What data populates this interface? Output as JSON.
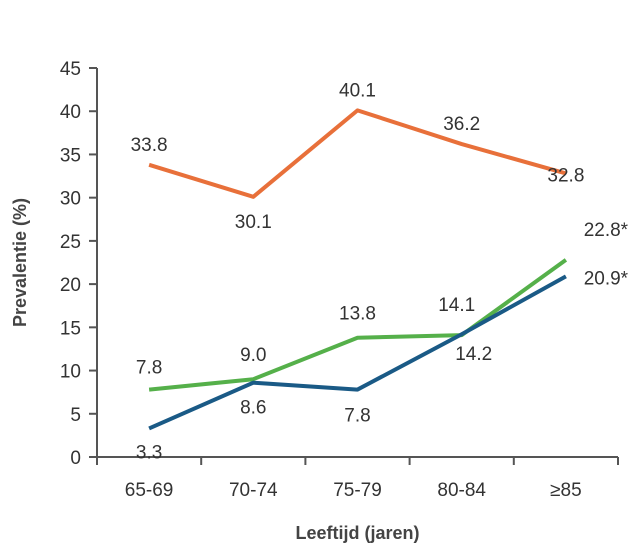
{
  "chart_data": {
    "type": "line",
    "categories": [
      "65-69",
      "70-74",
      "75-79",
      "80-84",
      "≥85"
    ],
    "xlabel": "Leeftijd (jaren)",
    "ylabel": "Prevalentie (%)",
    "ylim": [
      0,
      45
    ],
    "yticks": [
      "0",
      "5",
      "10",
      "15",
      "20",
      "25",
      "30",
      "35",
      "40",
      "45"
    ],
    "grid": false,
    "series": [
      {
        "color": "#e8703a",
        "values": [
          33.8,
          30.1,
          40.1,
          36.2,
          32.8
        ],
        "labels": [
          "33.8",
          "30.1",
          "40.1",
          "36.2",
          "32.8"
        ]
      },
      {
        "color": "#55b04a",
        "values": [
          7.8,
          9.0,
          13.8,
          14.1,
          22.8
        ],
        "labels": [
          "7.8",
          "9.0",
          "13.8",
          "14.1",
          "22.8*"
        ]
      },
      {
        "color": "#1a5a86",
        "values": [
          3.3,
          8.6,
          7.8,
          14.2,
          20.9
        ],
        "labels": [
          "3.3",
          "8.6",
          "7.8",
          "14.2",
          "20.9*"
        ]
      }
    ]
  }
}
